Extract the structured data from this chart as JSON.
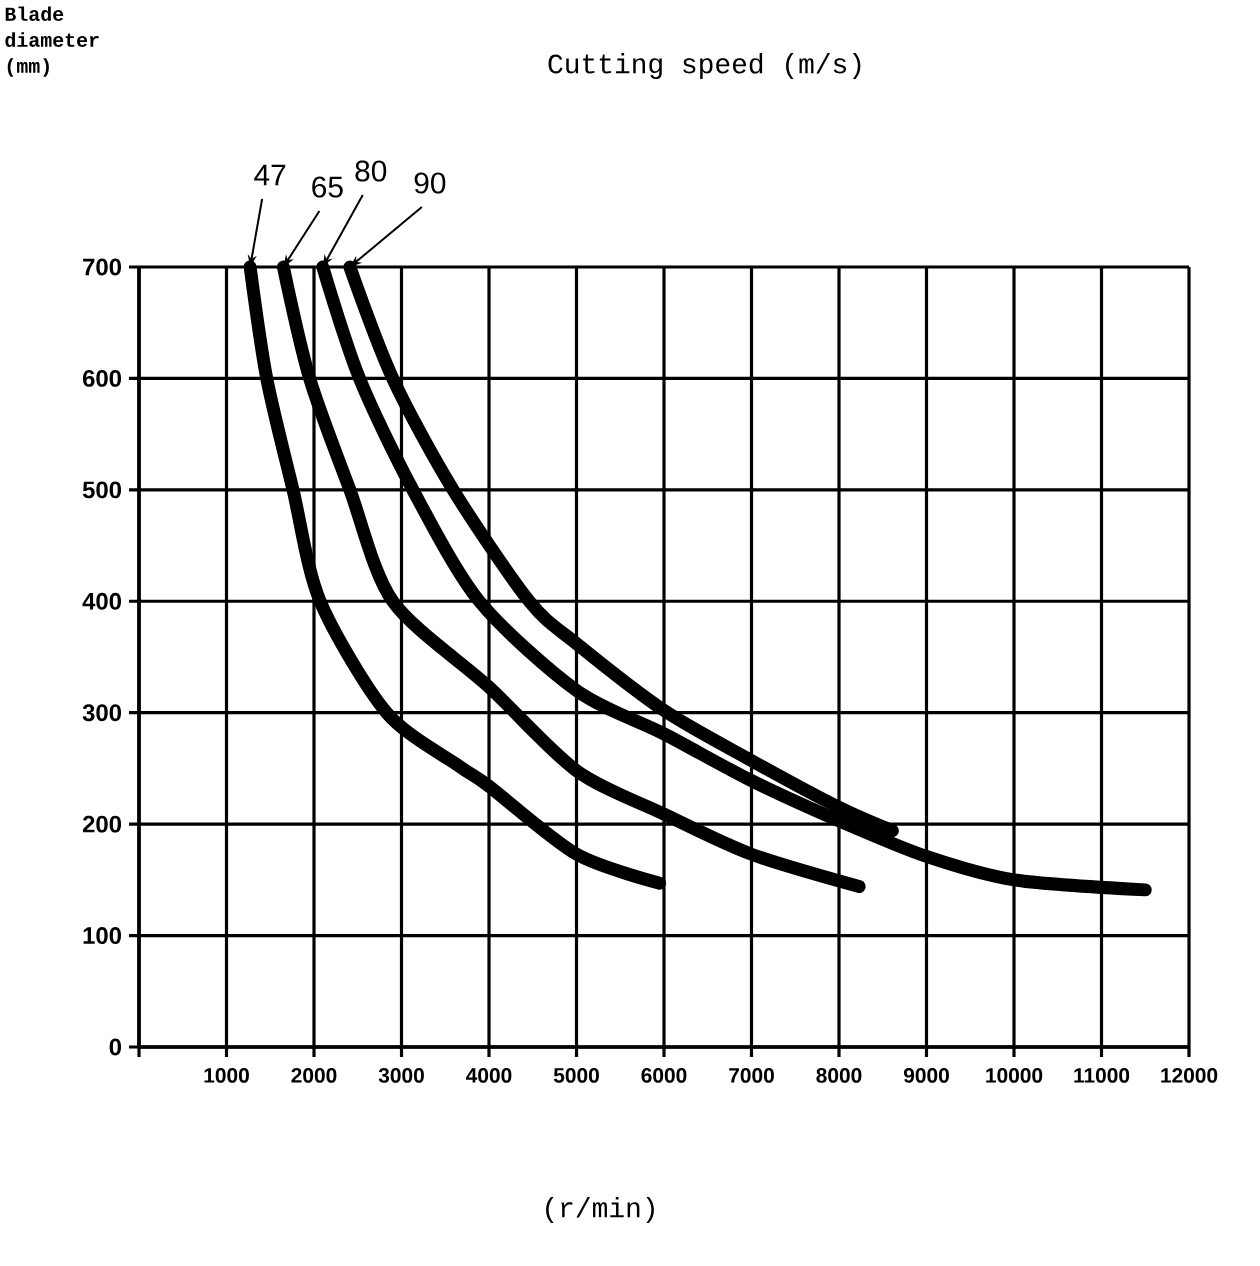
{
  "chart_data": {
    "type": "line",
    "title": "Cutting speed (m/s)",
    "annotations": [
      "Blade diameter (mm)"
    ],
    "xlabel": "(r/min)",
    "xlim": [
      0,
      12000
    ],
    "ylim": [
      0,
      700
    ],
    "xticks": [
      {
        "value": 0,
        "label": null
      },
      1000,
      2000,
      3000,
      4000,
      5000,
      6000,
      7000,
      8000,
      9000,
      10000,
      11000,
      12000
    ],
    "yticks": [
      0,
      100,
      200,
      300,
      400,
      500,
      600,
      700
    ],
    "grid": true,
    "legend": false,
    "marker": "none",
    "line_style": "solid",
    "series": [
      {
        "name": "47",
        "color": "#000000",
        "x": [
          1270,
          1460,
          1760,
          2070,
          2830,
          3660,
          4000,
          5000,
          5950
        ],
        "values": [
          700,
          600,
          500,
          400,
          300,
          252,
          234,
          173,
          147
        ]
      },
      {
        "name": "65",
        "color": "#000000",
        "x": [
          1650,
          1950,
          2410,
          2900,
          4000,
          5000,
          6000,
          7000,
          8230
        ],
        "values": [
          700,
          600,
          500,
          400,
          323,
          248,
          209,
          173,
          144
        ]
      },
      {
        "name": "80",
        "color": "#000000",
        "x": [
          2100,
          2520,
          3130,
          3890,
          5000,
          6000,
          7000,
          8000,
          9000,
          10000,
          11500
        ],
        "values": [
          700,
          600,
          500,
          400,
          320,
          281,
          239,
          203,
          171,
          150,
          141
        ]
      },
      {
        "name": "90",
        "color": "#000000",
        "x": [
          2410,
          2900,
          3590,
          4460,
          5000,
          6000,
          7000,
          8000,
          8610
        ],
        "values": [
          700,
          600,
          500,
          400,
          362,
          302,
          257,
          215,
          194
        ]
      }
    ]
  }
}
